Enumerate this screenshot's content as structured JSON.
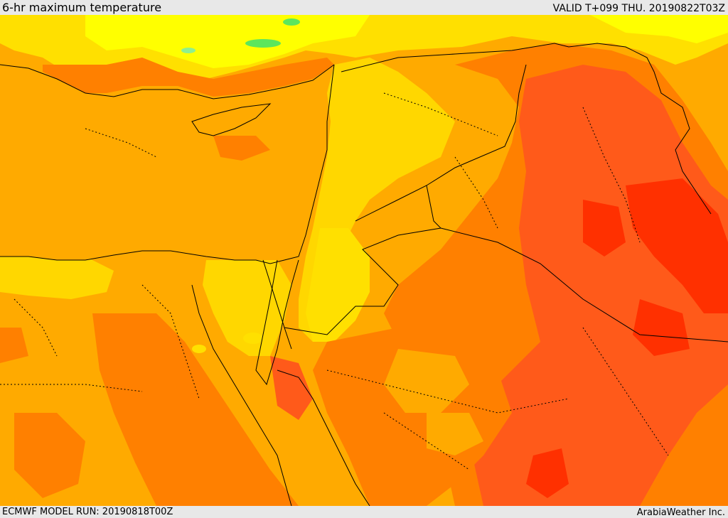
{
  "header": {
    "title": "6-hr maximum temperature",
    "valid": "VALID T+099 THU. 20190822T03Z"
  },
  "footer": {
    "model_run": "ECMWF MODEL RUN: 20190818T00Z",
    "credit": "ArabiaWeather Inc."
  },
  "palette": {
    "yellow": "#ffff00",
    "light_yellow_orange": "#ffe000",
    "yellow_orange": "#ffd700",
    "orange": "#ffaa00",
    "deep_orange": "#ff8000",
    "red_orange": "#ff5a1a",
    "red": "#ff3000",
    "green": "#5ce65c",
    "border": "#000000"
  }
}
